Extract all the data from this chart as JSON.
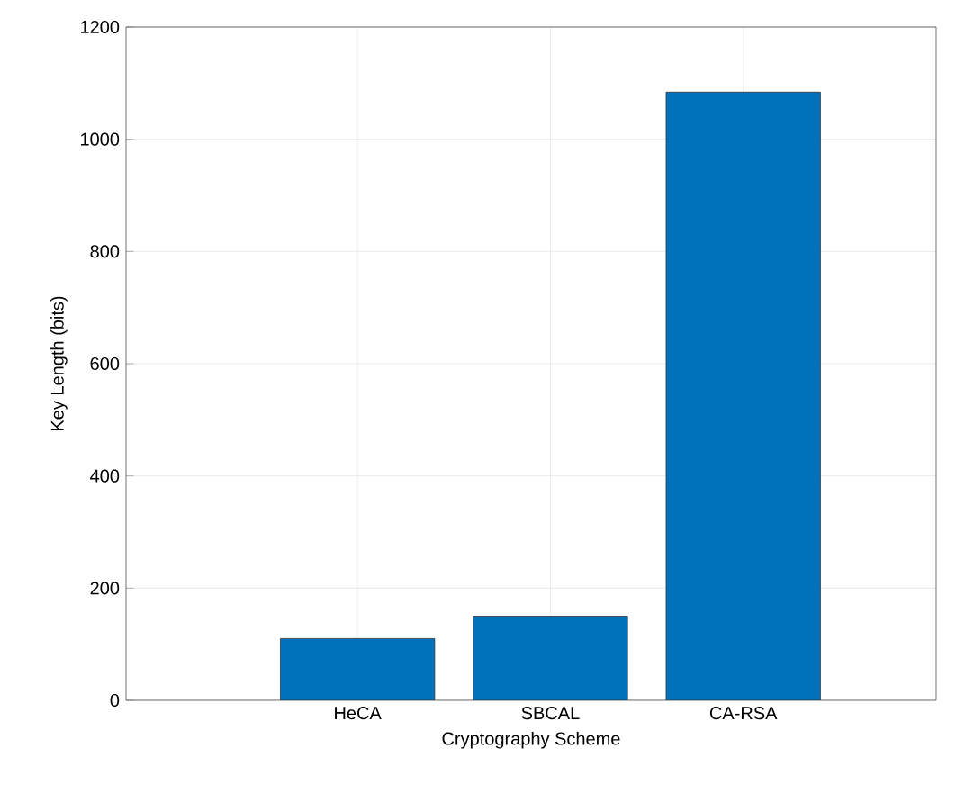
{
  "chart_data": {
    "type": "bar",
    "xlabel": "Cryptography Scheme",
    "ylabel": "Key Length (bits)",
    "categories": [
      "HeCA",
      "SBCAL",
      "CA-RSA"
    ],
    "values": [
      110,
      150,
      1084
    ],
    "color": "#0072bd",
    "ylim": [
      0,
      1200
    ],
    "yticks": [
      0,
      200,
      400,
      600,
      800,
      1000,
      1200
    ],
    "grid": true
  }
}
